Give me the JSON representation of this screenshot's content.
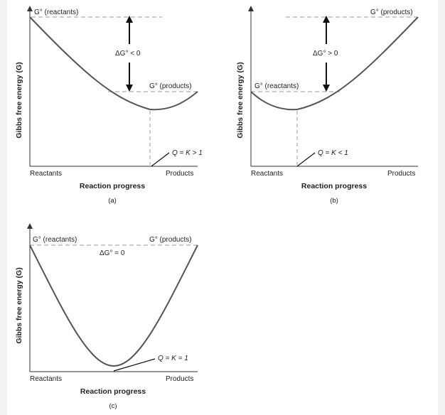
{
  "panels": [
    {
      "id": "a",
      "caption": "(a)",
      "y_axis_label": "Gibbs free energy (G)",
      "x_axis_label": "Reaction progress",
      "x_left_label": "Reactants",
      "x_right_label": "Products",
      "g_reactants_label": "G° (reactants)",
      "g_products_label": "G° (products)",
      "delta_label": "ΔG° < 0",
      "q_label": "Q = K > 1"
    },
    {
      "id": "b",
      "caption": "(b)",
      "y_axis_label": "Gibbs free energy (G)",
      "x_axis_label": "Reaction progress",
      "x_left_label": "Reactants",
      "x_right_label": "Products",
      "g_reactants_label": "G° (reactants)",
      "g_products_label": "G° (products)",
      "delta_label": "ΔG° > 0",
      "q_label": "Q = K < 1"
    },
    {
      "id": "c",
      "caption": "(c)",
      "y_axis_label": "Gibbs free energy (G)",
      "x_axis_label": "Reaction progress",
      "x_left_label": "Reactants",
      "x_right_label": "Products",
      "g_reactants_label": "G° (reactants)",
      "g_products_label": "G° (products)",
      "delta_label": "ΔG° = 0",
      "q_label": "Q = K = 1"
    }
  ],
  "colors": {
    "curve": "#555555",
    "axis": "#333333",
    "dashed": "#999999",
    "arrow": "#111111",
    "text": "#222222"
  }
}
